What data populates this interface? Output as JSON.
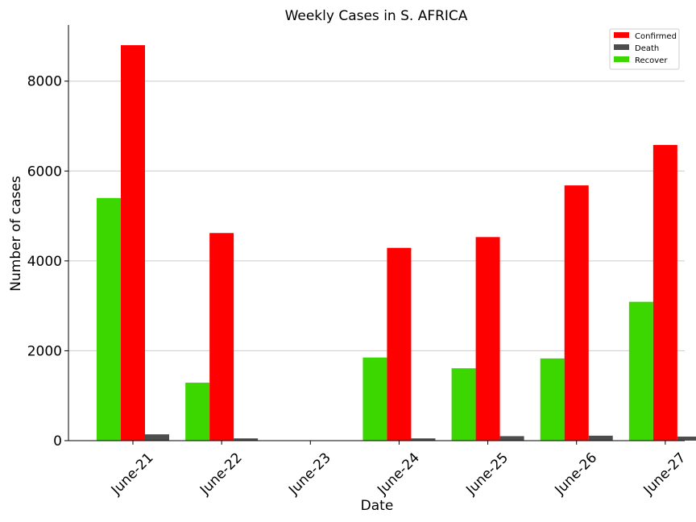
{
  "chart_data": {
    "type": "bar",
    "title": "Weekly Cases in S. AFRICA",
    "xlabel": "Date",
    "ylabel": "Number of cases",
    "categories": [
      "June-21",
      "June-22",
      "June-23",
      "June-24",
      "June-25",
      "June-26",
      "June-27"
    ],
    "ylim": [
      0,
      9250
    ],
    "yticks": [
      0,
      2000,
      4000,
      6000,
      8000
    ],
    "grid": "horizontal",
    "legend_position": "top-right",
    "series": [
      {
        "name": "Recover",
        "color": "#3cd600",
        "values": [
          5400,
          1290,
          0,
          1850,
          1610,
          1830,
          3090
        ]
      },
      {
        "name": "Confirmed",
        "color": "#ff0000",
        "values": [
          8800,
          4620,
          0,
          4290,
          4530,
          5680,
          6580
        ]
      },
      {
        "name": "Death",
        "color": "#4d4d4d",
        "values": [
          140,
          50,
          0,
          50,
          100,
          110,
          90
        ]
      }
    ],
    "legend_order": [
      "Confirmed",
      "Death",
      "Recover"
    ]
  }
}
